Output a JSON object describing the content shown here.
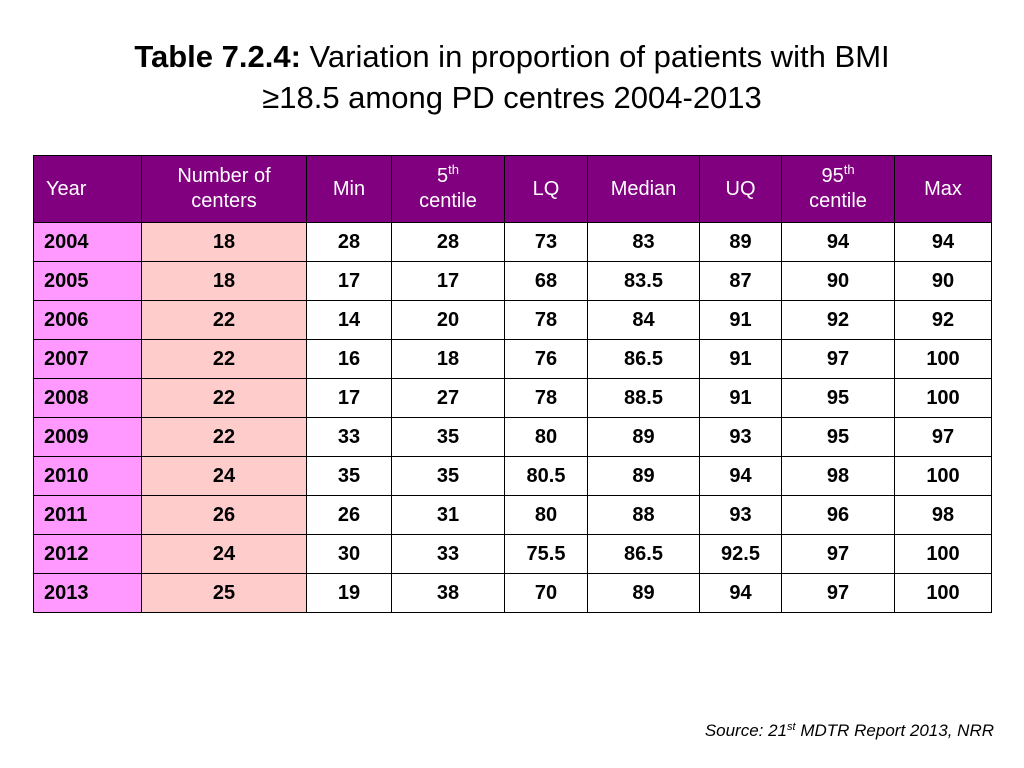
{
  "title": {
    "prefix": "Table 7.2.4:",
    "line1": " Variation in proportion of patients with BMI",
    "line2": "≥18.5 among PD centres 2004-2013"
  },
  "table": {
    "headers": {
      "year": "Year",
      "centers_line1": "Number of",
      "centers_line2": "centers",
      "min": "Min",
      "p5_num": "5",
      "p5_sup": "th",
      "p5_word": "centile",
      "lq": "LQ",
      "median": "Median",
      "uq": "UQ",
      "p95_num": "95",
      "p95_sup": "th",
      "p95_word": "centile",
      "max": "Max"
    },
    "rows": [
      [
        "2004",
        "18",
        "28",
        "28",
        "73",
        "83",
        "89",
        "94",
        "94"
      ],
      [
        "2005",
        "18",
        "17",
        "17",
        "68",
        "83.5",
        "87",
        "90",
        "90"
      ],
      [
        "2006",
        "22",
        "14",
        "20",
        "78",
        "84",
        "91",
        "92",
        "92"
      ],
      [
        "2007",
        "22",
        "16",
        "18",
        "76",
        "86.5",
        "91",
        "97",
        "100"
      ],
      [
        "2008",
        "22",
        "17",
        "27",
        "78",
        "88.5",
        "91",
        "95",
        "100"
      ],
      [
        "2009",
        "22",
        "33",
        "35",
        "80",
        "89",
        "93",
        "95",
        "97"
      ],
      [
        "2010",
        "24",
        "35",
        "35",
        "80.5",
        "89",
        "94",
        "98",
        "100"
      ],
      [
        "2011",
        "26",
        "26",
        "31",
        "80",
        "88",
        "93",
        "96",
        "98"
      ],
      [
        "2012",
        "24",
        "30",
        "33",
        "75.5",
        "86.5",
        "92.5",
        "97",
        "100"
      ],
      [
        "2013",
        "25",
        "19",
        "38",
        "70",
        "89",
        "94",
        "97",
        "100"
      ]
    ]
  },
  "source": {
    "prefix": "Source: 21",
    "sup": "st",
    "suffix": " MDTR Report 2013, NRR"
  },
  "colors": {
    "header_bg": "#800080",
    "year_bg": "#ff99ff",
    "centers_bg": "#ffcccc"
  }
}
